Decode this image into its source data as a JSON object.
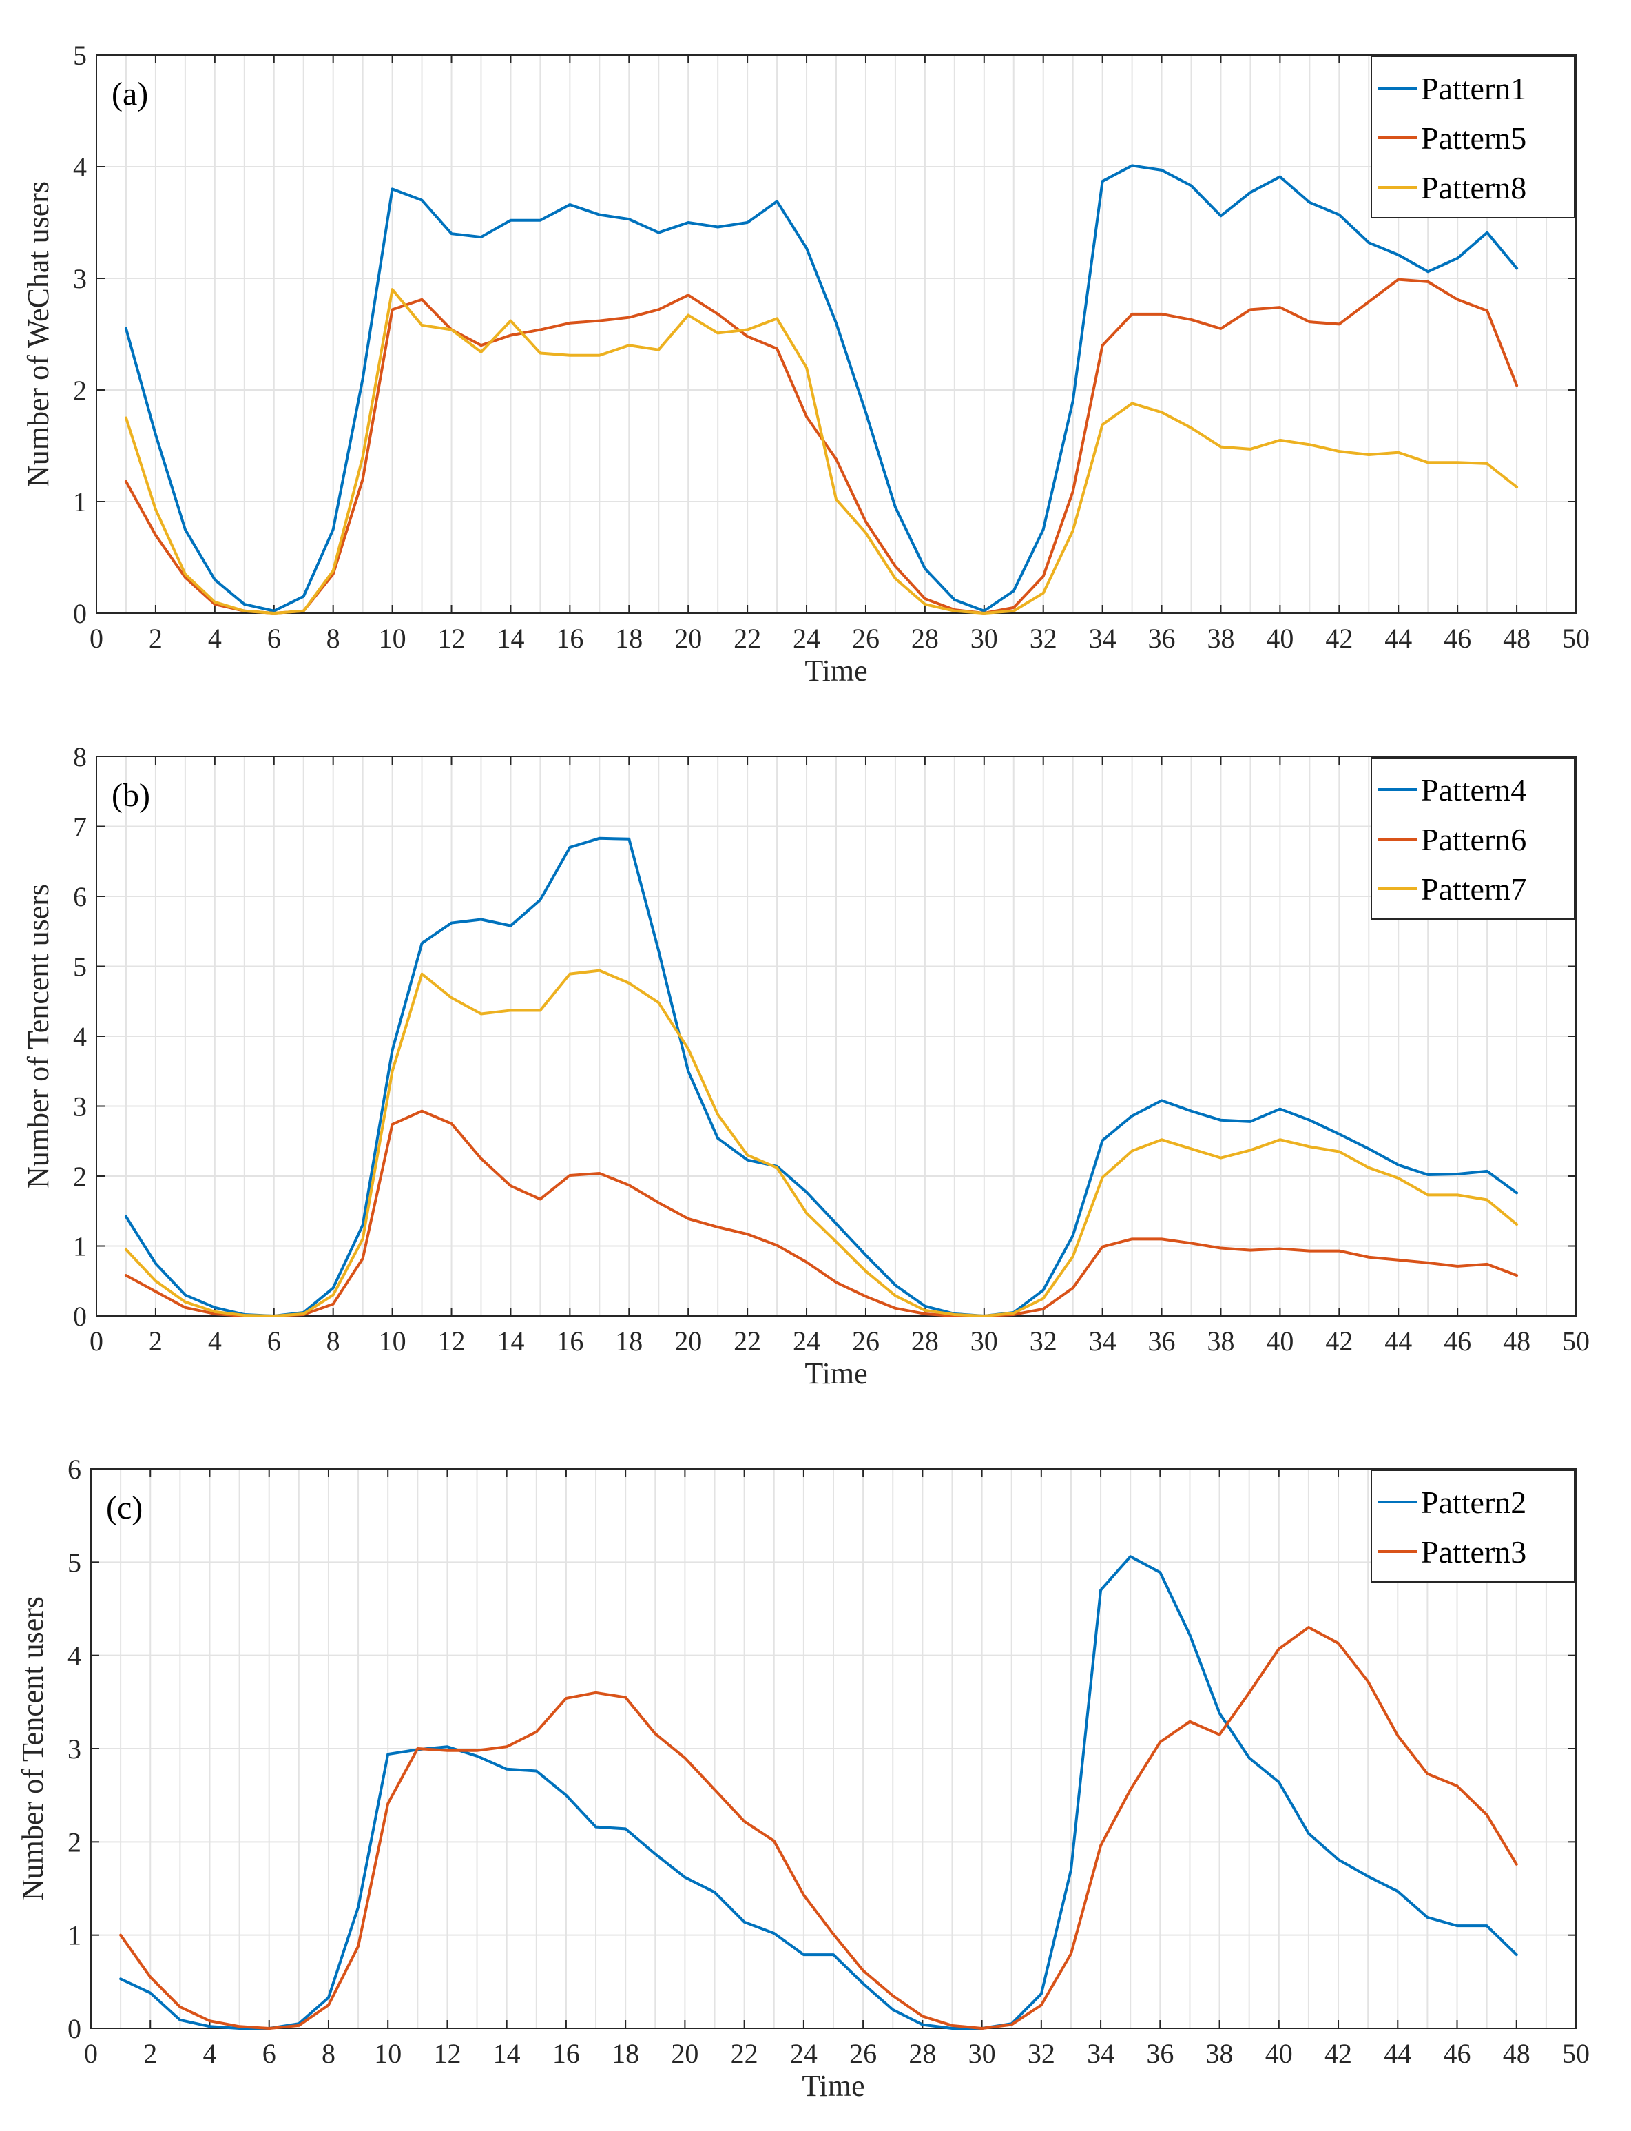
{
  "chart_data": [
    {
      "type": "line",
      "panel_label": "(a)",
      "xlabel": "Time",
      "ylabel": "Number of WeChat users",
      "xlim": [
        0,
        50
      ],
      "ylim": [
        0,
        5
      ],
      "xticks": [
        0,
        2,
        4,
        6,
        8,
        10,
        12,
        14,
        16,
        18,
        20,
        22,
        24,
        26,
        28,
        30,
        32,
        34,
        36,
        38,
        40,
        42,
        44,
        46,
        48,
        50
      ],
      "yticks": [
        0,
        1,
        2,
        3,
        4,
        5
      ],
      "grid": true,
      "legend": "top-right",
      "x": [
        1,
        2,
        3,
        4,
        5,
        6,
        7,
        8,
        9,
        10,
        11,
        12,
        13,
        14,
        15,
        16,
        17,
        18,
        19,
        20,
        21,
        22,
        23,
        24,
        25,
        26,
        27,
        28,
        29,
        30,
        31,
        32,
        33,
        34,
        35,
        36,
        37,
        38,
        39,
        40,
        41,
        42,
        43,
        44,
        45,
        46,
        47,
        48
      ],
      "series": [
        {
          "name": "Pattern1",
          "color": "#0072BD",
          "values": [
            2.55,
            1.6,
            0.75,
            0.3,
            0.08,
            0.02,
            0.15,
            0.75,
            2.1,
            3.8,
            3.7,
            3.4,
            3.37,
            3.52,
            3.52,
            3.66,
            3.57,
            3.53,
            3.41,
            3.5,
            3.46,
            3.5,
            3.69,
            3.27,
            2.6,
            1.8,
            0.95,
            0.4,
            0.12,
            0.02,
            0.2,
            0.75,
            1.9,
            3.87,
            4.01,
            3.97,
            3.83,
            3.56,
            3.77,
            3.91,
            3.68,
            3.57,
            3.32,
            3.21,
            3.06,
            3.18,
            3.41,
            3.09
          ]
        },
        {
          "name": "Pattern5",
          "color": "#D95319",
          "values": [
            1.18,
            0.7,
            0.32,
            0.08,
            0.02,
            0.0,
            0.02,
            0.35,
            1.2,
            2.72,
            2.81,
            2.54,
            2.4,
            2.49,
            2.54,
            2.6,
            2.62,
            2.65,
            2.72,
            2.85,
            2.68,
            2.48,
            2.37,
            1.76,
            1.38,
            0.82,
            0.42,
            0.13,
            0.03,
            0.0,
            0.05,
            0.33,
            1.09,
            2.4,
            2.68,
            2.68,
            2.63,
            2.55,
            2.72,
            2.74,
            2.61,
            2.59,
            2.79,
            2.99,
            2.97,
            2.81,
            2.71,
            2.04
          ]
        },
        {
          "name": "Pattern8",
          "color": "#EDB120",
          "values": [
            1.75,
            0.93,
            0.35,
            0.1,
            0.02,
            0.0,
            0.02,
            0.38,
            1.4,
            2.9,
            2.58,
            2.54,
            2.34,
            2.62,
            2.33,
            2.31,
            2.31,
            2.4,
            2.36,
            2.67,
            2.51,
            2.54,
            2.64,
            2.2,
            1.02,
            0.72,
            0.31,
            0.08,
            0.02,
            0.0,
            0.02,
            0.18,
            0.74,
            1.69,
            1.88,
            1.8,
            1.66,
            1.49,
            1.47,
            1.55,
            1.51,
            1.45,
            1.42,
            1.44,
            1.35,
            1.35,
            1.34,
            1.13
          ]
        }
      ]
    },
    {
      "type": "line",
      "panel_label": "(b)",
      "xlabel": "Time",
      "ylabel": "Number of Tencent users",
      "xlim": [
        0,
        50
      ],
      "ylim": [
        0,
        8
      ],
      "xticks": [
        0,
        2,
        4,
        6,
        8,
        10,
        12,
        14,
        16,
        18,
        20,
        22,
        24,
        26,
        28,
        30,
        32,
        34,
        36,
        38,
        40,
        42,
        44,
        46,
        48,
        50
      ],
      "yticks": [
        0,
        1,
        2,
        3,
        4,
        5,
        6,
        7,
        8
      ],
      "grid": true,
      "legend": "top-right",
      "x": [
        1,
        2,
        3,
        4,
        5,
        6,
        7,
        8,
        9,
        10,
        11,
        12,
        13,
        14,
        15,
        16,
        17,
        18,
        19,
        20,
        21,
        22,
        23,
        24,
        25,
        26,
        27,
        28,
        29,
        30,
        31,
        32,
        33,
        34,
        35,
        36,
        37,
        38,
        39,
        40,
        41,
        42,
        43,
        44,
        45,
        46,
        47,
        48
      ],
      "series": [
        {
          "name": "Pattern4",
          "color": "#0072BD",
          "values": [
            1.42,
            0.75,
            0.3,
            0.12,
            0.02,
            0.0,
            0.05,
            0.4,
            1.3,
            3.8,
            5.33,
            5.62,
            5.67,
            5.58,
            5.95,
            6.7,
            6.83,
            6.82,
            5.22,
            3.5,
            2.54,
            2.23,
            2.14,
            1.77,
            1.32,
            0.87,
            0.44,
            0.14,
            0.03,
            0.0,
            0.05,
            0.37,
            1.15,
            2.51,
            2.86,
            3.08,
            2.93,
            2.8,
            2.78,
            2.96,
            2.8,
            2.6,
            2.39,
            2.16,
            2.02,
            2.03,
            2.07,
            1.76
          ]
        },
        {
          "name": "Pattern6",
          "color": "#D95319",
          "values": [
            0.58,
            0.35,
            0.12,
            0.03,
            0.0,
            0.0,
            0.02,
            0.17,
            0.82,
            2.74,
            2.93,
            2.75,
            2.25,
            1.86,
            1.67,
            2.01,
            2.04,
            1.87,
            1.62,
            1.39,
            1.27,
            1.17,
            1.01,
            0.77,
            0.48,
            0.28,
            0.11,
            0.03,
            0.0,
            0.0,
            0.02,
            0.1,
            0.4,
            0.99,
            1.1,
            1.1,
            1.04,
            0.97,
            0.94,
            0.96,
            0.93,
            0.93,
            0.84,
            0.8,
            0.76,
            0.71,
            0.74,
            0.58
          ]
        },
        {
          "name": "Pattern7",
          "color": "#EDB120",
          "values": [
            0.95,
            0.5,
            0.2,
            0.06,
            0.01,
            0.0,
            0.03,
            0.3,
            1.1,
            3.5,
            4.89,
            4.55,
            4.32,
            4.37,
            4.37,
            4.89,
            4.94,
            4.76,
            4.48,
            3.82,
            2.88,
            2.3,
            2.12,
            1.47,
            1.06,
            0.64,
            0.29,
            0.08,
            0.02,
            0.0,
            0.04,
            0.25,
            0.85,
            1.98,
            2.36,
            2.52,
            2.39,
            2.26,
            2.37,
            2.52,
            2.42,
            2.35,
            2.12,
            1.97,
            1.73,
            1.73,
            1.66,
            1.31
          ]
        }
      ]
    },
    {
      "type": "line",
      "panel_label": "(c)",
      "xlabel": "Time",
      "ylabel": "Number of Tencent users",
      "xlim": [
        0,
        50
      ],
      "ylim": [
        0,
        6
      ],
      "xticks": [
        0,
        2,
        4,
        6,
        8,
        10,
        12,
        14,
        16,
        18,
        20,
        22,
        24,
        26,
        28,
        30,
        32,
        34,
        36,
        38,
        40,
        42,
        44,
        46,
        48,
        50
      ],
      "yticks": [
        0,
        1,
        2,
        3,
        4,
        5,
        6
      ],
      "grid": true,
      "legend": "top-right",
      "x": [
        1,
        2,
        3,
        4,
        5,
        6,
        7,
        8,
        9,
        10,
        11,
        12,
        13,
        14,
        15,
        16,
        17,
        18,
        19,
        20,
        21,
        22,
        23,
        24,
        25,
        26,
        27,
        28,
        29,
        30,
        31,
        32,
        33,
        34,
        35,
        36,
        37,
        38,
        39,
        40,
        41,
        42,
        43,
        44,
        45,
        46,
        47,
        48
      ],
      "series": [
        {
          "name": "Pattern2",
          "color": "#0072BD",
          "values": [
            0.53,
            0.38,
            0.09,
            0.02,
            0.0,
            0.0,
            0.05,
            0.33,
            1.3,
            2.94,
            2.99,
            3.02,
            2.92,
            2.78,
            2.76,
            2.5,
            2.16,
            2.14,
            1.87,
            1.62,
            1.46,
            1.14,
            1.02,
            0.79,
            0.79,
            0.48,
            0.2,
            0.04,
            0.0,
            0.0,
            0.05,
            0.37,
            1.7,
            4.7,
            5.06,
            4.89,
            4.22,
            3.38,
            2.9,
            2.64,
            2.09,
            1.81,
            1.63,
            1.47,
            1.19,
            1.1,
            1.1,
            0.79
          ]
        },
        {
          "name": "Pattern3",
          "color": "#D95319",
          "values": [
            1.0,
            0.55,
            0.23,
            0.08,
            0.02,
            0.0,
            0.03,
            0.25,
            0.88,
            2.41,
            3.0,
            2.98,
            2.98,
            3.02,
            3.18,
            3.54,
            3.6,
            3.55,
            3.16,
            2.9,
            2.56,
            2.22,
            2.01,
            1.43,
            1.01,
            0.62,
            0.35,
            0.13,
            0.03,
            0.0,
            0.04,
            0.25,
            0.8,
            1.96,
            2.56,
            3.07,
            3.29,
            3.15,
            3.6,
            4.07,
            4.3,
            4.13,
            3.72,
            3.14,
            2.73,
            2.6,
            2.29,
            1.76
          ]
        }
      ]
    }
  ]
}
